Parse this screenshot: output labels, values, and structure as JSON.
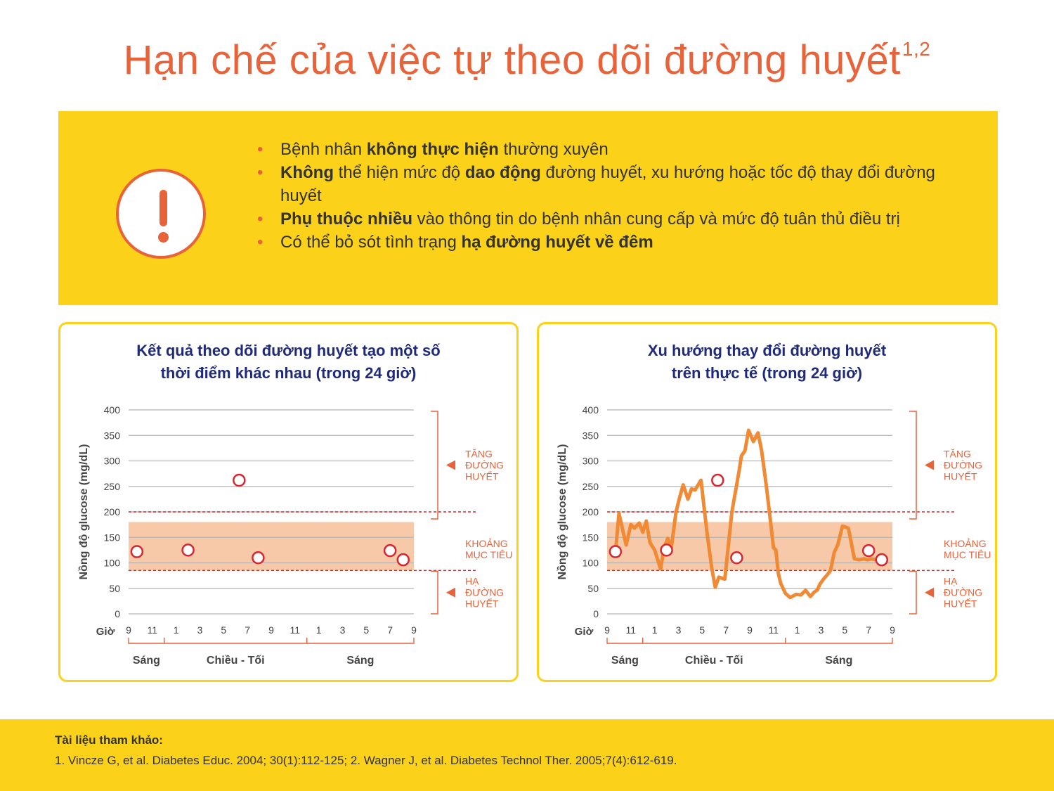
{
  "title": {
    "text": "Hạn chế của việc tự theo dõi đường huyết",
    "superscript": "1,2"
  },
  "warning": {
    "icon": "exclamation-icon",
    "bullets": [
      [
        {
          "t": "Bệnh nhân ",
          "b": false
        },
        {
          "t": "không thực hiện",
          "b": true
        },
        {
          "t": " thường xuyên",
          "b": false
        }
      ],
      [
        {
          "t": "Không",
          "b": true
        },
        {
          "t": " thể hiện mức độ ",
          "b": false
        },
        {
          "t": "dao động",
          "b": true
        },
        {
          "t": " đường huyết, xu hướng hoặc tốc độ thay đổi đường huyết",
          "b": false
        }
      ],
      [
        {
          "t": "Phụ thuộc nhiều",
          "b": true
        },
        {
          "t": " vào thông tin do bệnh nhân cung cấp và mức độ tuân thủ điều trị",
          "b": false
        }
      ],
      [
        {
          "t": "Có thể bỏ sót tình trạng ",
          "b": false
        },
        {
          "t": "hạ đường huyết về đêm",
          "b": true
        }
      ]
    ]
  },
  "colors": {
    "orange": "#e8633a",
    "line": "#f08a35",
    "yellow": "#fbd119",
    "navy": "#1f2a7a",
    "target_band": "#f8c9a8",
    "grid": "#b5b5b5"
  },
  "chart_data": [
    {
      "type": "scatter",
      "title_lines": [
        "Kết quả theo dõi đường huyết tạo một số",
        "thời điểm khác nhau (trong 24 giờ)"
      ],
      "ylabel": "Nồng độ glucose (mg/dL)",
      "xlabel": "Giờ",
      "ylim": [
        0,
        400
      ],
      "yticks": [
        0,
        50,
        100,
        150,
        200,
        250,
        300,
        350,
        400
      ],
      "xlim": [
        9,
        33
      ],
      "xticks": [
        9,
        11,
        13,
        15,
        17,
        19,
        21,
        23,
        25,
        27,
        29,
        31,
        33
      ],
      "xtick_labels": [
        "9",
        "11",
        "1",
        "3",
        "5",
        "7",
        "9",
        "11",
        "1",
        "3",
        "5",
        "7",
        "9"
      ],
      "groups": [
        {
          "label": "Sáng",
          "from": 9,
          "to": 12
        },
        {
          "label": "Chiều - Tối",
          "from": 12,
          "to": 24
        },
        {
          "label": "Sáng",
          "from": 24,
          "to": 33
        }
      ],
      "target_band": [
        85,
        180
      ],
      "threshold_lines": [
        200,
        85
      ],
      "zones": [
        {
          "lines": [
            "TĂNG",
            "ĐƯỜNG",
            "HUYẾT"
          ],
          "from": 200,
          "to": 400
        },
        {
          "lines": [
            "KHOẢNG",
            "MỤC TIÊU"
          ],
          "from": 85,
          "to": 200
        },
        {
          "lines": [
            "HẠ",
            "ĐƯỜNG",
            "HUYẾT"
          ],
          "from": 0,
          "to": 85
        }
      ],
      "points": [
        {
          "x": 9.7,
          "y": 122
        },
        {
          "x": 14.0,
          "y": 125
        },
        {
          "x": 18.3,
          "y": 262
        },
        {
          "x": 19.9,
          "y": 110
        },
        {
          "x": 31.0,
          "y": 124
        },
        {
          "x": 32.1,
          "y": 106
        }
      ],
      "grid": true
    },
    {
      "type": "line",
      "title_lines": [
        "Xu hướng thay đổi đường huyết",
        "trên thực tế (trong 24 giờ)"
      ],
      "ylabel": "Nồng độ glucose (mg/dL)",
      "xlabel": "Giờ",
      "ylim": [
        0,
        400
      ],
      "yticks": [
        0,
        50,
        100,
        150,
        200,
        250,
        300,
        350,
        400
      ],
      "xlim": [
        9,
        33
      ],
      "xticks": [
        9,
        11,
        13,
        15,
        17,
        19,
        21,
        23,
        25,
        27,
        29,
        31,
        33
      ],
      "xtick_labels": [
        "9",
        "11",
        "1",
        "3",
        "5",
        "7",
        "9",
        "11",
        "1",
        "3",
        "5",
        "7",
        "9"
      ],
      "groups": [
        {
          "label": "Sáng",
          "from": 9,
          "to": 12
        },
        {
          "label": "Chiều - Tối",
          "from": 12,
          "to": 24
        },
        {
          "label": "Sáng",
          "from": 24,
          "to": 33
        }
      ],
      "target_band": [
        85,
        180
      ],
      "threshold_lines": [
        200,
        85
      ],
      "zones": [
        {
          "lines": [
            "TĂNG",
            "ĐƯỜNG",
            "HUYẾT"
          ],
          "from": 200,
          "to": 400
        },
        {
          "lines": [
            "KHOẢNG",
            "MỤC TIÊU"
          ],
          "from": 85,
          "to": 200
        },
        {
          "lines": [
            "HẠ",
            "ĐƯỜNG",
            "HUYẾT"
          ],
          "from": 0,
          "to": 85
        }
      ],
      "series": [
        {
          "x": [
            9.7,
            10.0,
            10.6,
            11.0,
            11.3,
            11.7,
            12.0,
            12.3,
            12.6,
            13.0,
            13.5,
            13.8,
            14.1,
            14.4,
            14.8,
            15.1,
            15.4,
            15.8,
            16.1,
            16.4,
            16.9,
            17.4,
            17.8,
            18.1,
            18.4,
            18.9,
            19.5,
            19.8,
            20.1,
            20.3,
            20.6,
            20.9,
            21.3,
            21.7,
            22.0,
            22.4,
            22.8,
            23.0,
            23.2,
            23.4,
            23.6,
            24.0,
            24.4,
            24.9,
            25.3,
            25.7,
            26.1,
            26.4,
            26.7,
            26.9,
            27.2,
            27.5,
            27.8,
            28.1,
            28.4,
            28.8,
            29.3,
            29.8,
            30.2,
            30.6,
            30.9,
            31.2,
            31.6,
            31.9,
            32.1
          ],
          "y": [
            120,
            197,
            135,
            175,
            168,
            178,
            160,
            182,
            140,
            125,
            88,
            130,
            148,
            130,
            200,
            228,
            253,
            225,
            245,
            243,
            262,
            160,
            90,
            52,
            72,
            68,
            200,
            240,
            280,
            310,
            320,
            360,
            338,
            355,
            320,
            250,
            170,
            130,
            125,
            80,
            60,
            40,
            32,
            38,
            37,
            46,
            34,
            42,
            47,
            58,
            68,
            76,
            85,
            120,
            135,
            172,
            168,
            108,
            106,
            108,
            106,
            108,
            106,
            108,
            106
          ]
        }
      ],
      "points": [
        {
          "x": 9.7,
          "y": 122
        },
        {
          "x": 14.0,
          "y": 125
        },
        {
          "x": 18.3,
          "y": 262
        },
        {
          "x": 19.9,
          "y": 110
        },
        {
          "x": 31.0,
          "y": 124
        },
        {
          "x": 32.1,
          "y": 106
        }
      ],
      "grid": true
    }
  ],
  "references": {
    "heading": "Tài liệu tham khảo:",
    "text": "1. Vincze G, et al. Diabetes Educ.  2004; 30(1):112-125; 2. Wagner J, et al. Diabetes Technol Ther. 2005;7(4):612-619."
  }
}
